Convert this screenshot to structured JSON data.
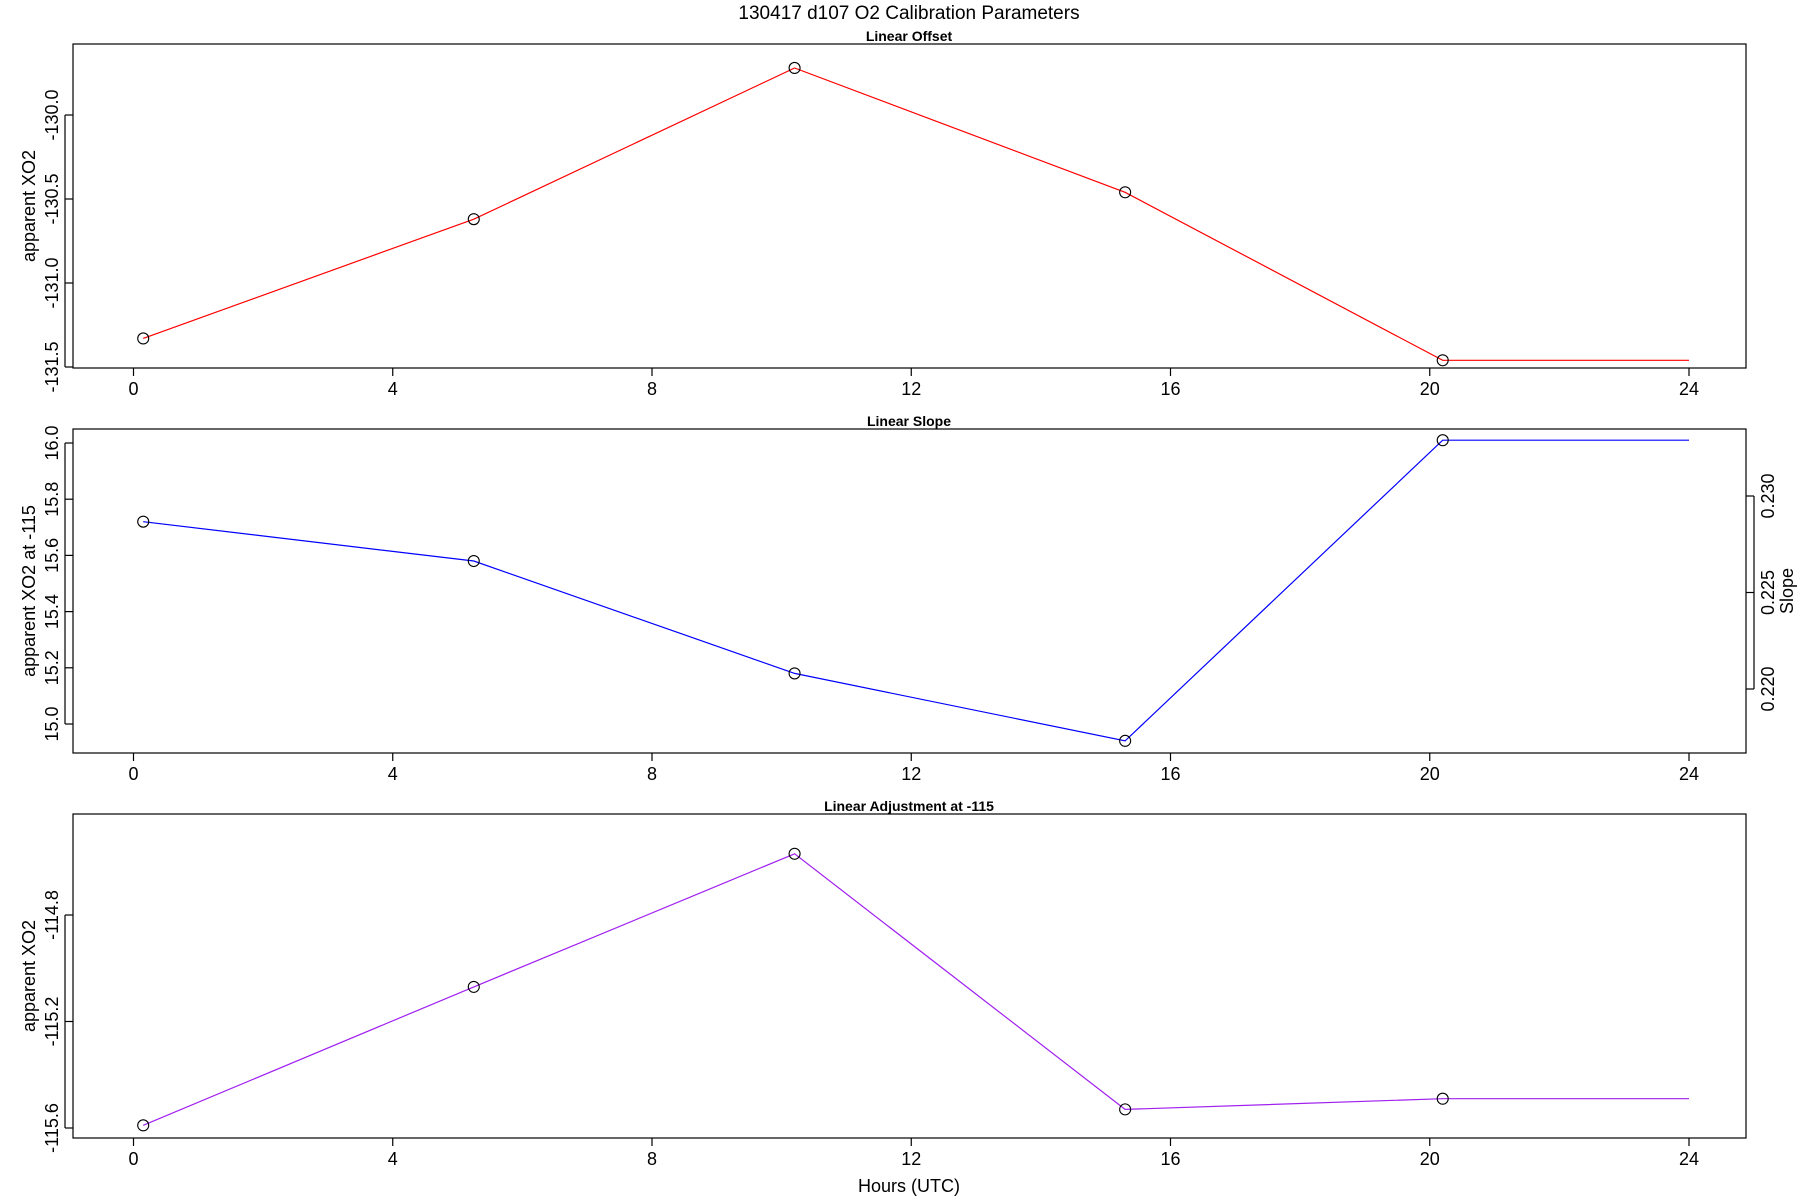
{
  "title": "130417   d107   O2 Calibration Parameters",
  "xlabel": "Hours (UTC)",
  "chart_data": [
    {
      "type": "line",
      "title": "Linear Offset",
      "xlabel": "",
      "ylabel": "apparent XO2",
      "xlim": [
        0,
        24
      ],
      "xticks": [
        "0",
        "4",
        "8",
        "12",
        "16",
        "20",
        "24"
      ],
      "ylim": [
        -131.5,
        -129.8
      ],
      "yticks": [
        "-130.0",
        "-130.5",
        "-131.0",
        "-131.5"
      ],
      "line_color": "#ff0000",
      "x": [
        0.15,
        5.25,
        10.2,
        15.3,
        20.2,
        24.0
      ],
      "values": [
        -131.33,
        -130.62,
        -129.72,
        -130.46,
        -131.46,
        -131.46
      ],
      "marker_count": 5
    },
    {
      "type": "line",
      "title": "Linear Slope",
      "xlabel": "",
      "ylabel": "apparent XO2 at -115",
      "ylabel_right": "Slope",
      "xlim": [
        0,
        24
      ],
      "xticks": [
        "0",
        "4",
        "8",
        "12",
        "16",
        "20",
        "24"
      ],
      "ylim": [
        14.9,
        16.0
      ],
      "yticks": [
        "15.0",
        "15.2",
        "15.4",
        "15.6",
        "15.8",
        "16.0"
      ],
      "yticks_right": [
        "0.220",
        "0.225",
        "0.230"
      ],
      "line_color": "#0000ff",
      "x": [
        0.15,
        5.25,
        10.2,
        15.3,
        20.2,
        24.0
      ],
      "values": [
        15.72,
        15.58,
        15.18,
        14.94,
        16.01,
        16.01
      ],
      "marker_count": 5
    },
    {
      "type": "line",
      "title": "Linear Adjustment at -115",
      "xlabel": "Hours (UTC)",
      "ylabel": "apparent XO2",
      "xlim": [
        0,
        24
      ],
      "xticks": [
        "0",
        "4",
        "8",
        "12",
        "16",
        "20",
        "24"
      ],
      "ylim": [
        -115.6,
        -114.6
      ],
      "yticks": [
        "-114.8",
        "-115.2",
        "-115.6"
      ],
      "line_color": "#a020f0",
      "x": [
        0.15,
        5.25,
        10.2,
        15.3,
        20.2,
        24.0
      ],
      "values": [
        -115.59,
        -115.07,
        -114.57,
        -115.53,
        -115.49,
        -115.49
      ],
      "marker_count": 5
    }
  ]
}
